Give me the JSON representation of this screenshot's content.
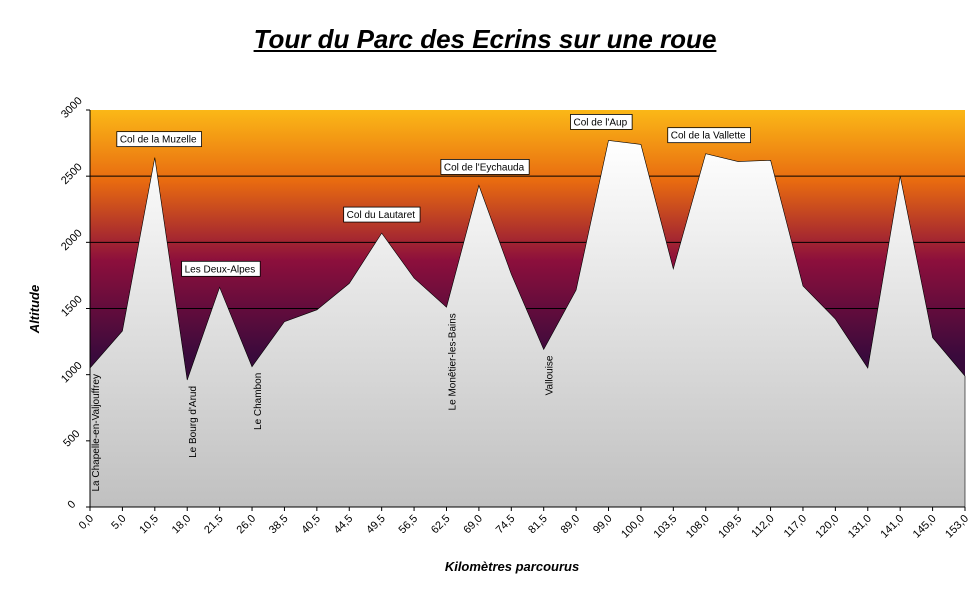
{
  "chart_data": {
    "type": "area",
    "title": "Tour du Parc des Ecrins sur une roue",
    "xlabel": "Kilomètres parcourus",
    "ylabel": "Altitude",
    "ylim": [
      0,
      3000
    ],
    "yticks": [
      "0",
      "500",
      "1000",
      "1500",
      "2000",
      "2500",
      "3000"
    ],
    "gridlines": [
      1500,
      2000,
      2500
    ],
    "categories": [
      "0,0",
      "5,0",
      "10,5",
      "18,0",
      "21,5",
      "26,0",
      "38,5",
      "40,5",
      "44,5",
      "49,5",
      "56,5",
      "62,5",
      "69,0",
      "74,5",
      "81,5",
      "89,0",
      "99,0",
      "100,0",
      "103,5",
      "108,0",
      "109,5",
      "112,0",
      "117,0",
      "120,0",
      "131,0",
      "141,0",
      "145,0",
      "153,0"
    ],
    "values": [
      1050,
      1330,
      2640,
      960,
      1660,
      1060,
      1400,
      1490,
      1690,
      2070,
      1730,
      1510,
      2430,
      1760,
      1190,
      1640,
      2770,
      2740,
      1800,
      2670,
      2610,
      2620,
      1670,
      1420,
      1050,
      2500,
      1280,
      990
    ],
    "colors": {
      "fill_top": "#f5a623",
      "fill_mid": "#7a1040",
      "fill_low": "#2a0838",
      "area_top": "#ffffff",
      "area_bottom": "#c0c0c0"
    },
    "annotations": [
      {
        "text": "Col de la Muzelle",
        "index": 2,
        "style": "box"
      },
      {
        "text": "Les Deux-Alpes",
        "index": 4,
        "style": "box"
      },
      {
        "text": "Col du Lautaret",
        "index": 9,
        "style": "box"
      },
      {
        "text": "Col de l'Eychauda",
        "index": 12,
        "style": "box"
      },
      {
        "text": "Col de l'Aup",
        "index": 16,
        "style": "box"
      },
      {
        "text": "Col de la Vallette",
        "index": 19,
        "style": "box"
      },
      {
        "text": "La Chapelle-en-Valjouffrey",
        "index": 0,
        "style": "vertical"
      },
      {
        "text": "Le Bourg d'Arud",
        "index": 3,
        "style": "vertical"
      },
      {
        "text": "Le Chambon",
        "index": 5,
        "style": "vertical"
      },
      {
        "text": "Le Monêtier-les-Bains",
        "index": 11,
        "style": "vertical"
      },
      {
        "text": "Vallouise",
        "index": 14,
        "style": "vertical"
      }
    ]
  }
}
